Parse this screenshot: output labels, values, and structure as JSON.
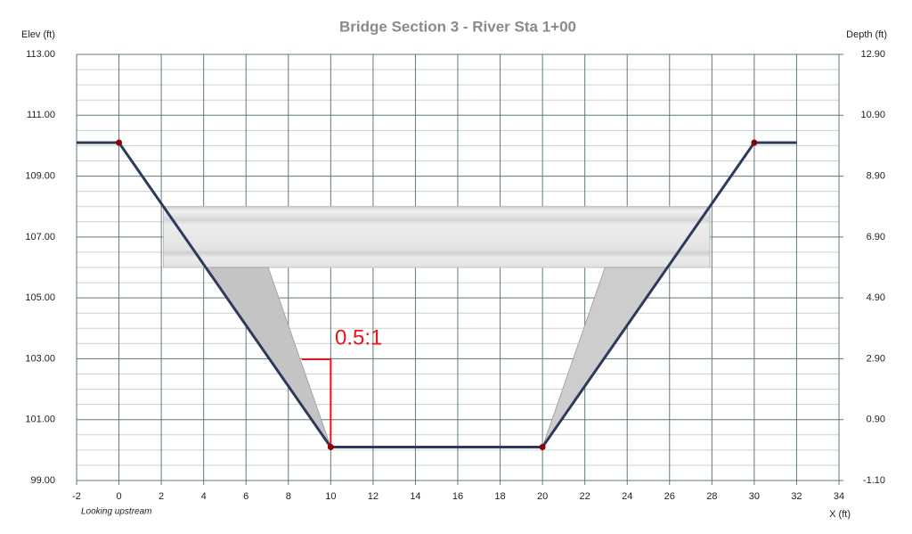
{
  "chart_data": {
    "type": "line",
    "title": "Bridge Section 3 - River Sta 1+00",
    "y_label": "Elev (ft)",
    "y2_label": "Depth (ft)",
    "x_label": "X (ft)",
    "note": "Looking upstream",
    "annotation": "0.5:1",
    "xlim": [
      -2,
      34
    ],
    "xticks": [
      -2,
      0,
      2,
      4,
      6,
      8,
      10,
      12,
      14,
      16,
      18,
      20,
      22,
      24,
      26,
      28,
      30,
      32,
      34
    ],
    "ylim": [
      99,
      113
    ],
    "yticks": [
      {
        "value": 99,
        "label": "99.00"
      },
      {
        "value": 101,
        "label": "101.00"
      },
      {
        "value": 103,
        "label": "103.00"
      },
      {
        "value": 105,
        "label": "105.00"
      },
      {
        "value": 107,
        "label": "107.00"
      },
      {
        "value": 109,
        "label": "109.00"
      },
      {
        "value": 111,
        "label": "111.00"
      },
      {
        "value": 113,
        "label": "113.00"
      }
    ],
    "y2lim": [
      -1.1,
      12.9
    ],
    "y2ticks": [
      {
        "value": -1.1,
        "label": "-1.10"
      },
      {
        "value": 0.9,
        "label": "0.90"
      },
      {
        "value": 2.9,
        "label": "2.90"
      },
      {
        "value": 4.9,
        "label": "4.90"
      },
      {
        "value": 6.9,
        "label": "6.90"
      },
      {
        "value": 8.9,
        "label": "8.90"
      },
      {
        "value": 10.9,
        "label": "10.90"
      },
      {
        "value": 12.9,
        "label": "12.90"
      }
    ],
    "grid": true,
    "ground": {
      "color": "#2e3a5c",
      "marker_color": "#8b0000",
      "x": [
        -2,
        0,
        10,
        20,
        30,
        32
      ],
      "values": [
        110.1,
        110.1,
        100.1,
        100.1,
        110.1,
        110.1
      ]
    },
    "deck": {
      "x": [
        2.1,
        27.9
      ],
      "low_chord": 106,
      "high_chord": 108
    },
    "abutments": [
      {
        "x": [
          4.1,
          7.05,
          10
        ],
        "values": [
          106,
          106,
          100.1
        ]
      },
      {
        "x": [
          25.9,
          22.95,
          20
        ],
        "values": [
          106,
          106,
          100.1
        ]
      }
    ]
  }
}
